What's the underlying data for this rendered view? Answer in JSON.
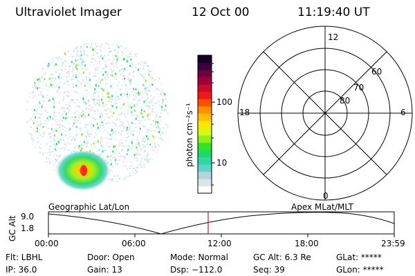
{
  "header": {
    "instrument": "Ultraviolet Imager",
    "date": "12 Oct 00",
    "time": "11:19:40 UT"
  },
  "colorbar": {
    "label": "photon cm⁻²s⁻¹",
    "ticks": [
      "100",
      "10"
    ],
    "colors": [
      "#ffffff",
      "#d8e8ea",
      "#b0d6da",
      "#62d2c8",
      "#2fd6a8",
      "#20d860",
      "#34e22a",
      "#8ef018",
      "#d8f810",
      "#ffe800",
      "#ffc000",
      "#ff9000",
      "#ff5000",
      "#f21818",
      "#cc0a2a",
      "#a0003a",
      "#6e0040",
      "#3a0040",
      "#10002a"
    ]
  },
  "polar_plot": {
    "labels": {
      "top": "12",
      "bottom": "0",
      "left": "18",
      "right": "6"
    },
    "rings": [
      "80",
      "70",
      "60"
    ]
  },
  "timeline": {
    "left_title": "Geographic Lat/Lon",
    "right_title": "Apex MLat/MLT",
    "y_axis_label": "GC Alt",
    "y_ticks": [
      "9.0",
      "1.8"
    ],
    "x_ticks": [
      "00:00",
      "06:00",
      "12:00",
      "18:00",
      "23:59"
    ],
    "marker_color": "#b81c2a"
  },
  "info": {
    "filter": "Flt: LBHL",
    "door": "Door: Open",
    "mode": "Mode: Normal",
    "gc_alt": "GC Alt: 6.3 Re",
    "glat": "GLat: *****",
    "ip": "IP: 36.0",
    "gain": "Gain: 13",
    "dsp": "Dsp: −112.0",
    "seq": "Seq: 39",
    "glon": "GLon: *****"
  }
}
